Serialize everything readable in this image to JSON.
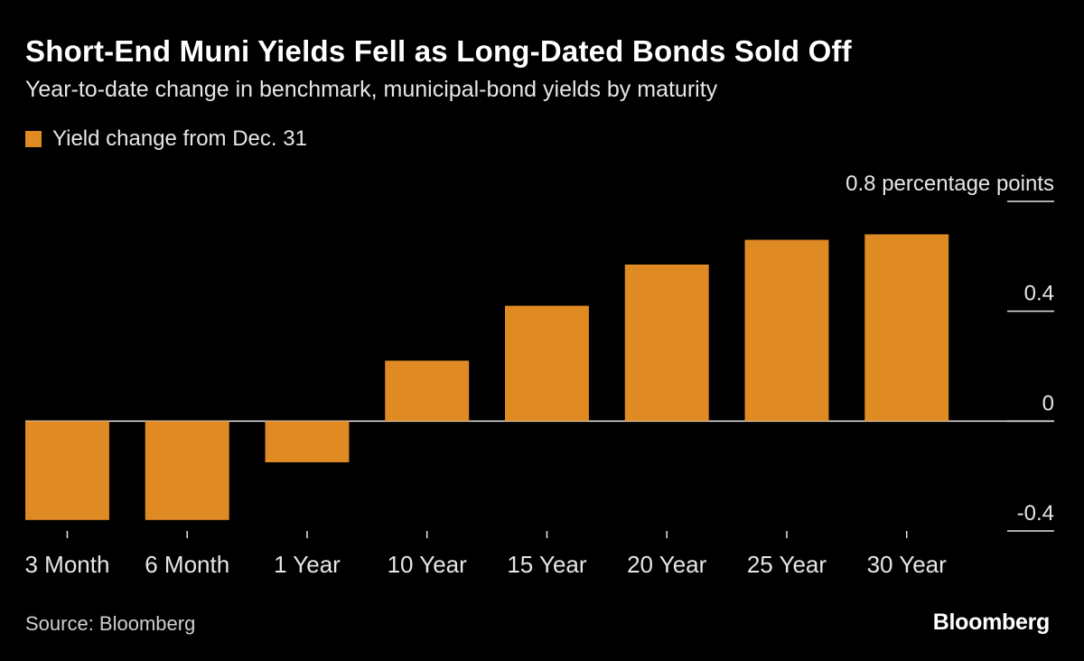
{
  "title": "Short-End Muni Yields Fell as Long-Dated Bonds Sold Off",
  "subtitle": "Year-to-date change in benchmark, municipal-bond yields by maturity",
  "legend_label": "Yield change from Dec. 31",
  "source": "Source: Bloomberg",
  "brand": "Bloomberg",
  "colors": {
    "bar": "#e08a24",
    "background": "#000000",
    "text": "#ffffff",
    "axis": "#cfcfcf"
  },
  "chart_data": {
    "type": "bar",
    "categories": [
      "3 Month",
      "6 Month",
      "1 Year",
      "10 Year",
      "15 Year",
      "20 Year",
      "25 Year",
      "30 Year"
    ],
    "series": [
      {
        "name": "Yield change from Dec. 31",
        "values": [
          -0.36,
          -0.36,
          -0.15,
          0.22,
          0.42,
          0.57,
          0.66,
          0.68
        ]
      }
    ],
    "ylim": [
      -0.4,
      0.8
    ],
    "yticks": [
      -0.4,
      0,
      0.4,
      0.8
    ],
    "ytick_labels": [
      "-0.4",
      "0",
      "0.4",
      "0.8 percentage points"
    ],
    "y_axis_side": "right",
    "grid": false,
    "legend_position": "top-left"
  }
}
